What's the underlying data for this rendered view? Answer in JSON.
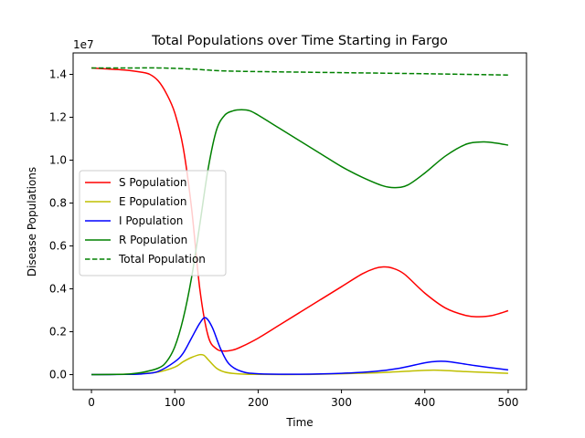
{
  "chart_data": {
    "type": "line",
    "title": "Total Populations over Time Starting in Fargo",
    "xlabel": "Time",
    "ylabel": "Disease Populations",
    "offset_label": "1e7",
    "xlim": [
      -22,
      522
    ],
    "ylim": [
      -0.07,
      1.5
    ],
    "xticks": [
      0,
      100,
      200,
      300,
      400,
      500
    ],
    "xtick_labels": [
      "0",
      "100",
      "200",
      "300",
      "400",
      "500"
    ],
    "yticks": [
      0.0,
      0.2,
      0.4,
      0.6,
      0.8,
      1.0,
      1.2,
      1.4
    ],
    "ytick_labels": [
      "0.0",
      "0.2",
      "0.4",
      "0.6",
      "0.8",
      "1.0",
      "1.2",
      "1.4"
    ],
    "grid": false,
    "legend_position": "center-left",
    "series": [
      {
        "name": "S Population",
        "color": "#ff0000",
        "dash": "solid",
        "points": [
          [
            0,
            1.43
          ],
          [
            20,
            1.425
          ],
          [
            40,
            1.42
          ],
          [
            60,
            1.41
          ],
          [
            70,
            1.4
          ],
          [
            80,
            1.37
          ],
          [
            90,
            1.31
          ],
          [
            100,
            1.22
          ],
          [
            110,
            1.06
          ],
          [
            120,
            0.78
          ],
          [
            130,
            0.4
          ],
          [
            140,
            0.18
          ],
          [
            150,
            0.12
          ],
          [
            160,
            0.11
          ],
          [
            170,
            0.115
          ],
          [
            180,
            0.13
          ],
          [
            200,
            0.17
          ],
          [
            225,
            0.23
          ],
          [
            250,
            0.29
          ],
          [
            275,
            0.35
          ],
          [
            300,
            0.41
          ],
          [
            325,
            0.47
          ],
          [
            340,
            0.495
          ],
          [
            350,
            0.502
          ],
          [
            360,
            0.498
          ],
          [
            375,
            0.47
          ],
          [
            400,
            0.38
          ],
          [
            425,
            0.31
          ],
          [
            450,
            0.275
          ],
          [
            465,
            0.27
          ],
          [
            480,
            0.275
          ],
          [
            500,
            0.298
          ]
        ]
      },
      {
        "name": "E Population",
        "color": "#bfbf00",
        "dash": "solid",
        "points": [
          [
            0,
            0
          ],
          [
            40,
            0.002
          ],
          [
            60,
            0.005
          ],
          [
            80,
            0.012
          ],
          [
            100,
            0.035
          ],
          [
            110,
            0.06
          ],
          [
            120,
            0.08
          ],
          [
            130,
            0.093
          ],
          [
            135,
            0.09
          ],
          [
            140,
            0.07
          ],
          [
            150,
            0.03
          ],
          [
            160,
            0.012
          ],
          [
            175,
            0.004
          ],
          [
            200,
            0.001
          ],
          [
            250,
            0.0005
          ],
          [
            300,
            0.004
          ],
          [
            350,
            0.01
          ],
          [
            400,
            0.02
          ],
          [
            420,
            0.02
          ],
          [
            450,
            0.014
          ],
          [
            500,
            0.006
          ]
        ]
      },
      {
        "name": "I Population",
        "color": "#0000ff",
        "dash": "solid",
        "points": [
          [
            0,
            0
          ],
          [
            40,
            0.001
          ],
          [
            60,
            0.003
          ],
          [
            80,
            0.015
          ],
          [
            100,
            0.06
          ],
          [
            110,
            0.1
          ],
          [
            120,
            0.17
          ],
          [
            130,
            0.24
          ],
          [
            137,
            0.265
          ],
          [
            145,
            0.22
          ],
          [
            155,
            0.12
          ],
          [
            165,
            0.05
          ],
          [
            180,
            0.015
          ],
          [
            200,
            0.004
          ],
          [
            250,
            0.002
          ],
          [
            300,
            0.006
          ],
          [
            340,
            0.015
          ],
          [
            370,
            0.03
          ],
          [
            400,
            0.055
          ],
          [
            415,
            0.062
          ],
          [
            430,
            0.06
          ],
          [
            460,
            0.042
          ],
          [
            500,
            0.022
          ]
        ]
      },
      {
        "name": "R Population",
        "color": "#008000",
        "dash": "solid",
        "points": [
          [
            0,
            0
          ],
          [
            40,
            0.002
          ],
          [
            60,
            0.01
          ],
          [
            80,
            0.03
          ],
          [
            90,
            0.06
          ],
          [
            100,
            0.13
          ],
          [
            110,
            0.26
          ],
          [
            120,
            0.45
          ],
          [
            130,
            0.7
          ],
          [
            140,
            0.96
          ],
          [
            150,
            1.14
          ],
          [
            160,
            1.21
          ],
          [
            170,
            1.23
          ],
          [
            180,
            1.235
          ],
          [
            190,
            1.23
          ],
          [
            200,
            1.21
          ],
          [
            225,
            1.15
          ],
          [
            250,
            1.09
          ],
          [
            275,
            1.03
          ],
          [
            300,
            0.97
          ],
          [
            325,
            0.92
          ],
          [
            350,
            0.88
          ],
          [
            365,
            0.872
          ],
          [
            380,
            0.885
          ],
          [
            400,
            0.94
          ],
          [
            425,
            1.02
          ],
          [
            450,
            1.075
          ],
          [
            470,
            1.085
          ],
          [
            485,
            1.08
          ],
          [
            500,
            1.07
          ]
        ]
      },
      {
        "name": "Total Population",
        "color": "#008000",
        "dash": "dashed",
        "points": [
          [
            0,
            1.43
          ],
          [
            50,
            1.43
          ],
          [
            80,
            1.43
          ],
          [
            100,
            1.428
          ],
          [
            120,
            1.425
          ],
          [
            140,
            1.42
          ],
          [
            160,
            1.416
          ],
          [
            200,
            1.413
          ],
          [
            300,
            1.408
          ],
          [
            400,
            1.403
          ],
          [
            450,
            1.4
          ],
          [
            500,
            1.397
          ]
        ]
      }
    ]
  }
}
